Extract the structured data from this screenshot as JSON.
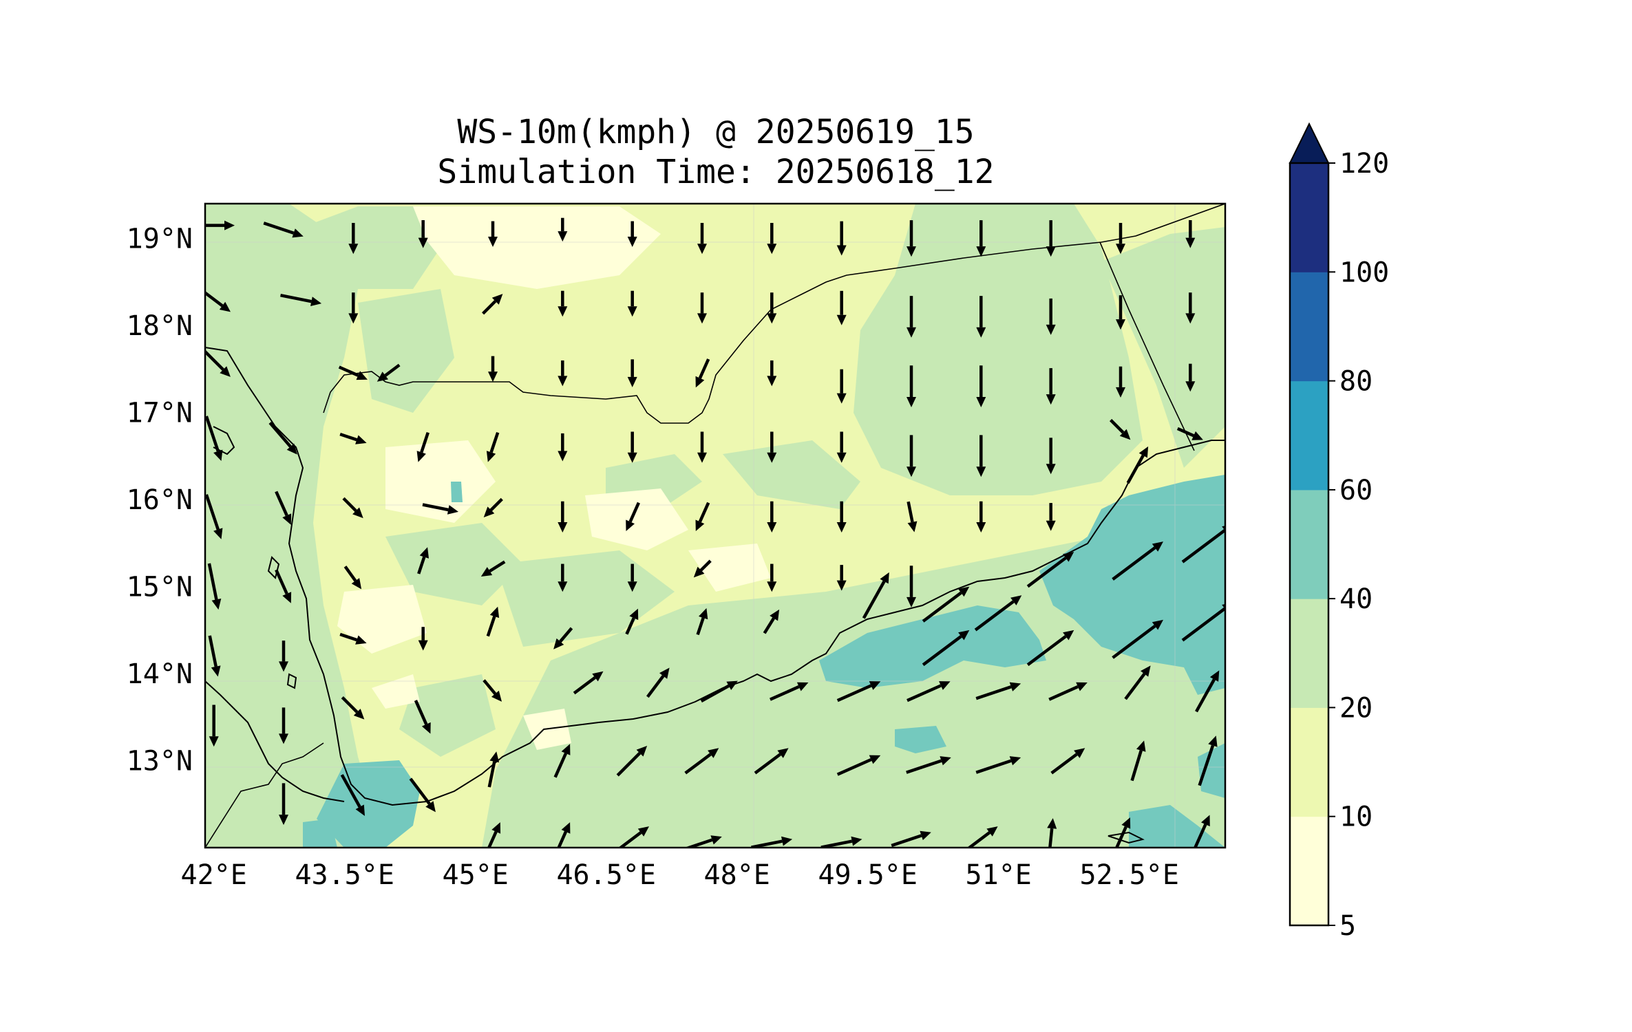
{
  "title": {
    "line1": "WS-10m(kmph) @ 20250619_15",
    "line2": "Simulation Time: 20250618_12"
  },
  "axes": {
    "x_ticks": [
      "42°E",
      "43.5°E",
      "45°E",
      "46.5°E",
      "48°E",
      "49.5°E",
      "51°E",
      "52.5°E"
    ],
    "y_ticks": [
      "19°N",
      "18°N",
      "17°N",
      "16°N",
      "15°N",
      "14°N",
      "13°N"
    ]
  },
  "colorbar": {
    "levels": [
      "5",
      "10",
      "20",
      "40",
      "60",
      "80",
      "100",
      "120"
    ],
    "colors": [
      "#ffffd9",
      "#edf8b1",
      "#c7e9b4",
      "#7fcdbb",
      "#2ca1c2",
      "#2166ac",
      "#1d2f7f"
    ],
    "extend_color": "#081d58",
    "extend": "max"
  },
  "map_colors": {
    "land_base": "#edf8b1",
    "calm": "#ffffd9",
    "moderate": "#c7e9b4",
    "strong": "#74c9be"
  },
  "chart_data": {
    "type": "heatmap",
    "variable": "WS-10m (kmph)",
    "lon_range": [
      41.9,
      53.6
    ],
    "lat_range": [
      12.0,
      19.4
    ],
    "contour_levels": [
      5,
      10,
      20,
      40,
      60,
      80,
      100,
      120
    ],
    "wind_vectors": [
      {
        "lon": 42.0,
        "lat": 19.15,
        "u": 1.0,
        "v": 0.0,
        "speed": 25
      },
      {
        "lon": 42.8,
        "lat": 19.1,
        "u": 0.9,
        "v": -0.3,
        "speed": 25
      },
      {
        "lon": 43.6,
        "lat": 19.0,
        "u": 0.0,
        "v": -1.0,
        "speed": 15
      },
      {
        "lon": 44.4,
        "lat": 19.05,
        "u": 0.0,
        "v": -1.0,
        "speed": 12
      },
      {
        "lon": 45.2,
        "lat": 19.05,
        "u": 0.0,
        "v": -1.0,
        "speed": 10
      },
      {
        "lon": 46.0,
        "lat": 19.1,
        "u": 0.0,
        "v": -1.0,
        "speed": 8
      },
      {
        "lon": 46.8,
        "lat": 19.05,
        "u": 0.0,
        "v": -1.0,
        "speed": 10
      },
      {
        "lon": 47.6,
        "lat": 19.0,
        "u": 0.0,
        "v": -1.0,
        "speed": 15
      },
      {
        "lon": 48.4,
        "lat": 19.0,
        "u": 0.0,
        "v": -1.0,
        "speed": 15
      },
      {
        "lon": 49.2,
        "lat": 19.0,
        "u": 0.0,
        "v": -1.0,
        "speed": 18
      },
      {
        "lon": 50.0,
        "lat": 19.0,
        "u": 0.0,
        "v": -1.0,
        "speed": 20
      },
      {
        "lon": 50.8,
        "lat": 19.0,
        "u": 0.0,
        "v": -1.0,
        "speed": 20
      },
      {
        "lon": 51.6,
        "lat": 19.0,
        "u": 0.0,
        "v": -1.0,
        "speed": 20
      },
      {
        "lon": 52.4,
        "lat": 19.0,
        "u": 0.0,
        "v": -1.0,
        "speed": 15
      },
      {
        "lon": 53.2,
        "lat": 19.05,
        "u": 0.0,
        "v": -1.0,
        "speed": 12
      },
      {
        "lon": 42.0,
        "lat": 18.3,
        "u": 0.8,
        "v": -0.6,
        "speed": 25
      },
      {
        "lon": 43.0,
        "lat": 18.3,
        "u": 1.0,
        "v": -0.2,
        "speed": 25
      },
      {
        "lon": 43.6,
        "lat": 18.2,
        "u": 0.0,
        "v": -1.0,
        "speed": 15
      },
      {
        "lon": 45.2,
        "lat": 18.25,
        "u": 0.6,
        "v": 0.6,
        "speed": 12
      },
      {
        "lon": 46.0,
        "lat": 18.25,
        "u": 0.0,
        "v": -1.0,
        "speed": 10
      },
      {
        "lon": 46.8,
        "lat": 18.25,
        "u": 0.0,
        "v": -1.0,
        "speed": 10
      },
      {
        "lon": 47.6,
        "lat": 18.2,
        "u": 0.0,
        "v": -1.0,
        "speed": 15
      },
      {
        "lon": 48.4,
        "lat": 18.2,
        "u": 0.0,
        "v": -1.0,
        "speed": 15
      },
      {
        "lon": 49.2,
        "lat": 18.2,
        "u": 0.0,
        "v": -1.0,
        "speed": 18
      },
      {
        "lon": 50.0,
        "lat": 18.1,
        "u": 0.0,
        "v": -1.0,
        "speed": 25
      },
      {
        "lon": 50.8,
        "lat": 18.1,
        "u": 0.0,
        "v": -1.0,
        "speed": 25
      },
      {
        "lon": 51.6,
        "lat": 18.1,
        "u": 0.0,
        "v": -1.0,
        "speed": 20
      },
      {
        "lon": 52.4,
        "lat": 18.15,
        "u": 0.0,
        "v": -1.0,
        "speed": 18
      },
      {
        "lon": 53.2,
        "lat": 18.2,
        "u": 0.0,
        "v": -1.0,
        "speed": 15
      },
      {
        "lon": 42.0,
        "lat": 17.6,
        "u": 0.7,
        "v": -0.7,
        "speed": 30
      },
      {
        "lon": 43.6,
        "lat": 17.45,
        "u": 0.9,
        "v": -0.4,
        "speed": 15
      },
      {
        "lon": 44.0,
        "lat": 17.45,
        "u": -0.8,
        "v": -0.6,
        "speed": 12
      },
      {
        "lon": 45.2,
        "lat": 17.5,
        "u": 0.0,
        "v": -1.0,
        "speed": 10
      },
      {
        "lon": 46.0,
        "lat": 17.45,
        "u": 0.0,
        "v": -1.0,
        "speed": 10
      },
      {
        "lon": 46.8,
        "lat": 17.45,
        "u": 0.0,
        "v": -1.0,
        "speed": 12
      },
      {
        "lon": 47.6,
        "lat": 17.45,
        "u": -0.4,
        "v": -0.9,
        "speed": 15
      },
      {
        "lon": 48.4,
        "lat": 17.45,
        "u": 0.0,
        "v": -1.0,
        "speed": 10
      },
      {
        "lon": 49.2,
        "lat": 17.3,
        "u": 0.0,
        "v": -1.0,
        "speed": 18
      },
      {
        "lon": 50.0,
        "lat": 17.3,
        "u": 0.0,
        "v": -1.0,
        "speed": 25
      },
      {
        "lon": 50.8,
        "lat": 17.3,
        "u": 0.0,
        "v": -1.0,
        "speed": 25
      },
      {
        "lon": 51.6,
        "lat": 17.3,
        "u": 0.0,
        "v": -1.0,
        "speed": 20
      },
      {
        "lon": 52.4,
        "lat": 17.35,
        "u": 0.0,
        "v": -1.0,
        "speed": 15
      },
      {
        "lon": 53.2,
        "lat": 17.4,
        "u": 0.0,
        "v": -1.0,
        "speed": 12
      },
      {
        "lon": 42.0,
        "lat": 16.7,
        "u": 0.3,
        "v": -0.9,
        "speed": 30
      },
      {
        "lon": 42.8,
        "lat": 16.7,
        "u": 0.6,
        "v": -0.7,
        "speed": 25
      },
      {
        "lon": 43.6,
        "lat": 16.7,
        "u": 0.9,
        "v": -0.3,
        "speed": 12
      },
      {
        "lon": 44.4,
        "lat": 16.6,
        "u": -0.3,
        "v": -0.9,
        "speed": 15
      },
      {
        "lon": 45.2,
        "lat": 16.6,
        "u": -0.3,
        "v": -0.9,
        "speed": 15
      },
      {
        "lon": 46.0,
        "lat": 16.6,
        "u": 0.0,
        "v": -1.0,
        "speed": 12
      },
      {
        "lon": 46.8,
        "lat": 16.6,
        "u": 0.0,
        "v": -1.0,
        "speed": 15
      },
      {
        "lon": 47.6,
        "lat": 16.6,
        "u": 0.0,
        "v": -1.0,
        "speed": 15
      },
      {
        "lon": 48.4,
        "lat": 16.6,
        "u": 0.0,
        "v": -1.0,
        "speed": 15
      },
      {
        "lon": 49.2,
        "lat": 16.6,
        "u": 0.0,
        "v": -1.0,
        "speed": 15
      },
      {
        "lon": 50.0,
        "lat": 16.5,
        "u": 0.0,
        "v": -1.0,
        "speed": 25
      },
      {
        "lon": 50.8,
        "lat": 16.5,
        "u": 0.0,
        "v": -1.0,
        "speed": 25
      },
      {
        "lon": 51.6,
        "lat": 16.5,
        "u": 0.0,
        "v": -1.0,
        "speed": 20
      },
      {
        "lon": 52.4,
        "lat": 16.8,
        "u": 0.6,
        "v": -0.6,
        "speed": 12
      },
      {
        "lon": 53.2,
        "lat": 16.75,
        "u": 0.9,
        "v": -0.4,
        "speed": 12
      },
      {
        "lon": 52.6,
        "lat": 16.4,
        "u": 0.5,
        "v": 0.9,
        "speed": 25
      },
      {
        "lon": 42.0,
        "lat": 15.8,
        "u": 0.3,
        "v": -0.9,
        "speed": 30
      },
      {
        "lon": 42.8,
        "lat": 15.9,
        "u": 0.4,
        "v": -0.9,
        "speed": 20
      },
      {
        "lon": 43.6,
        "lat": 15.9,
        "u": 0.6,
        "v": -0.6,
        "speed": 12
      },
      {
        "lon": 44.6,
        "lat": 15.9,
        "u": 1.0,
        "v": -0.2,
        "speed": 20
      },
      {
        "lon": 44.4,
        "lat": 15.3,
        "u": 0.3,
        "v": 0.9,
        "speed": 12
      },
      {
        "lon": 45.2,
        "lat": 15.9,
        "u": -0.6,
        "v": -0.6,
        "speed": 10
      },
      {
        "lon": 46.0,
        "lat": 15.8,
        "u": 0.0,
        "v": -1.0,
        "speed": 15
      },
      {
        "lon": 46.8,
        "lat": 15.8,
        "u": -0.4,
        "v": -0.9,
        "speed": 15
      },
      {
        "lon": 47.6,
        "lat": 15.8,
        "u": -0.4,
        "v": -0.9,
        "speed": 15
      },
      {
        "lon": 48.4,
        "lat": 15.8,
        "u": 0.0,
        "v": -1.0,
        "speed": 15
      },
      {
        "lon": 49.2,
        "lat": 15.8,
        "u": 0.0,
        "v": -1.0,
        "speed": 15
      },
      {
        "lon": 50.0,
        "lat": 15.8,
        "u": 0.2,
        "v": -1.0,
        "speed": 15
      },
      {
        "lon": 50.8,
        "lat": 15.8,
        "u": 0.0,
        "v": -1.0,
        "speed": 15
      },
      {
        "lon": 51.6,
        "lat": 15.8,
        "u": 0.0,
        "v": -1.0,
        "speed": 12
      },
      {
        "lon": 42.0,
        "lat": 15.0,
        "u": 0.2,
        "v": -1.0,
        "speed": 30
      },
      {
        "lon": 42.8,
        "lat": 15.0,
        "u": 0.4,
        "v": -0.9,
        "speed": 20
      },
      {
        "lon": 43.6,
        "lat": 15.1,
        "u": 0.5,
        "v": -0.7,
        "speed": 12
      },
      {
        "lon": 45.2,
        "lat": 15.2,
        "u": -0.8,
        "v": -0.5,
        "speed": 12
      },
      {
        "lon": 46.0,
        "lat": 15.1,
        "u": 0.0,
        "v": -1.0,
        "speed": 12
      },
      {
        "lon": 46.8,
        "lat": 15.1,
        "u": 0.0,
        "v": -1.0,
        "speed": 12
      },
      {
        "lon": 47.6,
        "lat": 15.2,
        "u": -0.7,
        "v": -0.7,
        "speed": 8
      },
      {
        "lon": 48.4,
        "lat": 15.1,
        "u": 0.0,
        "v": -1.0,
        "speed": 12
      },
      {
        "lon": 49.2,
        "lat": 15.1,
        "u": 0.0,
        "v": -1.0,
        "speed": 10
      },
      {
        "lon": 50.0,
        "lat": 15.0,
        "u": 0.0,
        "v": -1.0,
        "speed": 25
      },
      {
        "lon": 50.4,
        "lat": 14.8,
        "u": 0.8,
        "v": 0.6,
        "speed": 40
      },
      {
        "lon": 51.0,
        "lat": 14.7,
        "u": 0.8,
        "v": 0.6,
        "speed": 40
      },
      {
        "lon": 51.6,
        "lat": 15.2,
        "u": 0.8,
        "v": 0.6,
        "speed": 40
      },
      {
        "lon": 52.6,
        "lat": 15.3,
        "u": 0.8,
        "v": 0.6,
        "speed": 45
      },
      {
        "lon": 53.4,
        "lat": 15.5,
        "u": 0.8,
        "v": 0.6,
        "speed": 45
      },
      {
        "lon": 49.6,
        "lat": 14.9,
        "u": 0.5,
        "v": 0.9,
        "speed": 35
      },
      {
        "lon": 42.0,
        "lat": 14.2,
        "u": 0.2,
        "v": -1.0,
        "speed": 25
      },
      {
        "lon": 42.8,
        "lat": 14.2,
        "u": 0.0,
        "v": -1.0,
        "speed": 15
      },
      {
        "lon": 43.6,
        "lat": 14.4,
        "u": 0.9,
        "v": -0.3,
        "speed": 12
      },
      {
        "lon": 44.4,
        "lat": 14.4,
        "u": 0.0,
        "v": -1.0,
        "speed": 8
      },
      {
        "lon": 45.2,
        "lat": 14.6,
        "u": 0.3,
        "v": 0.9,
        "speed": 15
      },
      {
        "lon": 46.0,
        "lat": 14.4,
        "u": -0.6,
        "v": -0.7,
        "speed": 12
      },
      {
        "lon": 46.8,
        "lat": 14.6,
        "u": 0.4,
        "v": 0.9,
        "speed": 12
      },
      {
        "lon": 47.6,
        "lat": 14.6,
        "u": 0.3,
        "v": 0.9,
        "speed": 12
      },
      {
        "lon": 48.4,
        "lat": 14.6,
        "u": 0.5,
        "v": 0.8,
        "speed": 12
      },
      {
        "lon": 50.4,
        "lat": 14.3,
        "u": 0.8,
        "v": 0.6,
        "speed": 40
      },
      {
        "lon": 51.6,
        "lat": 14.3,
        "u": 0.8,
        "v": 0.6,
        "speed": 40
      },
      {
        "lon": 52.6,
        "lat": 14.4,
        "u": 0.8,
        "v": 0.6,
        "speed": 45
      },
      {
        "lon": 53.4,
        "lat": 14.6,
        "u": 0.8,
        "v": 0.6,
        "speed": 45
      },
      {
        "lon": 42.0,
        "lat": 13.4,
        "u": 0.0,
        "v": -1.0,
        "speed": 25
      },
      {
        "lon": 42.8,
        "lat": 13.4,
        "u": 0.0,
        "v": -1.0,
        "speed": 20
      },
      {
        "lon": 43.6,
        "lat": 13.6,
        "u": 0.6,
        "v": -0.6,
        "speed": 15
      },
      {
        "lon": 44.4,
        "lat": 13.5,
        "u": 0.4,
        "v": -0.9,
        "speed": 20
      },
      {
        "lon": 45.2,
        "lat": 13.8,
        "u": 0.5,
        "v": -0.6,
        "speed": 12
      },
      {
        "lon": 46.3,
        "lat": 13.9,
        "u": 0.8,
        "v": 0.6,
        "speed": 20
      },
      {
        "lon": 47.1,
        "lat": 13.9,
        "u": 0.6,
        "v": 0.8,
        "speed": 20
      },
      {
        "lon": 47.8,
        "lat": 13.8,
        "u": 0.9,
        "v": 0.5,
        "speed": 25
      },
      {
        "lon": 48.6,
        "lat": 13.8,
        "u": 0.9,
        "v": 0.4,
        "speed": 25
      },
      {
        "lon": 49.4,
        "lat": 13.8,
        "u": 0.9,
        "v": 0.4,
        "speed": 30
      },
      {
        "lon": 50.2,
        "lat": 13.8,
        "u": 0.9,
        "v": 0.4,
        "speed": 30
      },
      {
        "lon": 51.0,
        "lat": 13.8,
        "u": 0.9,
        "v": 0.3,
        "speed": 30
      },
      {
        "lon": 51.8,
        "lat": 13.8,
        "u": 0.9,
        "v": 0.4,
        "speed": 25
      },
      {
        "lon": 52.6,
        "lat": 13.9,
        "u": 0.6,
        "v": 0.8,
        "speed": 25
      },
      {
        "lon": 53.4,
        "lat": 13.8,
        "u": 0.5,
        "v": 0.9,
        "speed": 30
      },
      {
        "lon": 42.8,
        "lat": 12.5,
        "u": 0.0,
        "v": -1.0,
        "speed": 25
      },
      {
        "lon": 43.6,
        "lat": 12.6,
        "u": 0.5,
        "v": -0.9,
        "speed": 30
      },
      {
        "lon": 44.4,
        "lat": 12.6,
        "u": 0.6,
        "v": -0.8,
        "speed": 25
      },
      {
        "lon": 45.2,
        "lat": 12.9,
        "u": 0.2,
        "v": 1.0,
        "speed": 20
      },
      {
        "lon": 46.0,
        "lat": 13.0,
        "u": 0.4,
        "v": 0.9,
        "speed": 20
      },
      {
        "lon": 46.8,
        "lat": 13.0,
        "u": 0.7,
        "v": 0.7,
        "speed": 25
      },
      {
        "lon": 47.6,
        "lat": 13.0,
        "u": 0.8,
        "v": 0.6,
        "speed": 25
      },
      {
        "lon": 48.4,
        "lat": 13.0,
        "u": 0.8,
        "v": 0.6,
        "speed": 25
      },
      {
        "lon": 49.4,
        "lat": 12.95,
        "u": 0.9,
        "v": 0.4,
        "speed": 30
      },
      {
        "lon": 50.2,
        "lat": 12.95,
        "u": 0.9,
        "v": 0.3,
        "speed": 30
      },
      {
        "lon": 51.0,
        "lat": 12.95,
        "u": 0.9,
        "v": 0.3,
        "speed": 30
      },
      {
        "lon": 51.8,
        "lat": 13.0,
        "u": 0.8,
        "v": 0.6,
        "speed": 25
      },
      {
        "lon": 52.6,
        "lat": 13.0,
        "u": 0.3,
        "v": 1.0,
        "speed": 25
      },
      {
        "lon": 53.4,
        "lat": 13.0,
        "u": 0.3,
        "v": 0.9,
        "speed": 35
      },
      {
        "lon": 45.2,
        "lat": 12.1,
        "u": 0.4,
        "v": 0.9,
        "speed": 20
      },
      {
        "lon": 46.0,
        "lat": 12.1,
        "u": 0.4,
        "v": 0.9,
        "speed": 20
      },
      {
        "lon": 46.8,
        "lat": 12.1,
        "u": 0.8,
        "v": 0.6,
        "speed": 25
      },
      {
        "lon": 47.6,
        "lat": 12.05,
        "u": 0.9,
        "v": 0.3,
        "speed": 25
      },
      {
        "lon": 48.4,
        "lat": 12.05,
        "u": 1.0,
        "v": 0.2,
        "speed": 25
      },
      {
        "lon": 49.2,
        "lat": 12.05,
        "u": 1.0,
        "v": 0.2,
        "speed": 25
      },
      {
        "lon": 50.0,
        "lat": 12.1,
        "u": 0.9,
        "v": 0.3,
        "speed": 25
      },
      {
        "lon": 50.8,
        "lat": 12.1,
        "u": 0.8,
        "v": 0.6,
        "speed": 25
      },
      {
        "lon": 51.6,
        "lat": 12.1,
        "u": 0.1,
        "v": 1.0,
        "speed": 25
      },
      {
        "lon": 52.4,
        "lat": 12.1,
        "u": 0.4,
        "v": 0.9,
        "speed": 30
      },
      {
        "lon": 53.3,
        "lat": 12.1,
        "u": 0.4,
        "v": 0.9,
        "speed": 35
      }
    ]
  }
}
